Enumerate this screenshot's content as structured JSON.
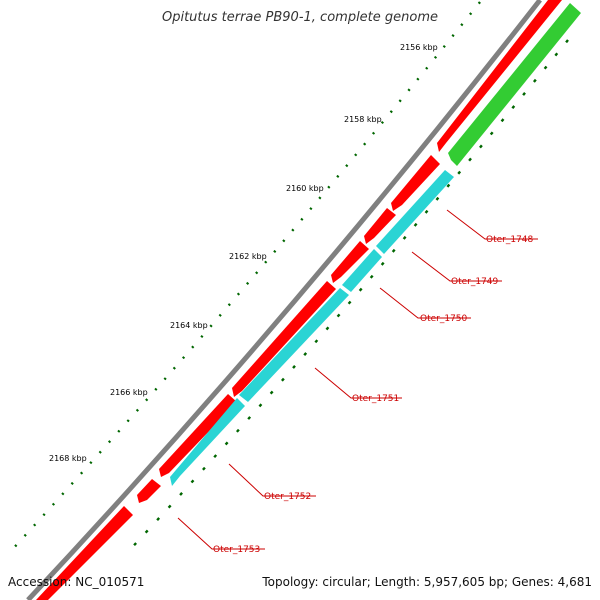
{
  "title": "Opitutus terrae PB90-1, complete genome",
  "footer": {
    "accession": "Accession: NC_010571",
    "summary": "Topology: circular; Length: 5,957,605 bp; Genes: 4,681"
  },
  "colors": {
    "backbone": "#808080",
    "forward_cds": "#ff0000",
    "reverse_cds": "#2ad4d4",
    "gene_track": "#33cc33",
    "ticks": "#006600",
    "labels": "#cc0000"
  },
  "scale_labels": [
    "2156 kbp",
    "2158 kbp",
    "2160 kbp",
    "2162 kbp",
    "2164 kbp",
    "2166 kbp",
    "2168 kbp"
  ],
  "genes": [
    "Oter_1748",
    "Oter_1749",
    "Oter_1750",
    "Oter_1751",
    "Oter_1752",
    "Oter_1753"
  ]
}
